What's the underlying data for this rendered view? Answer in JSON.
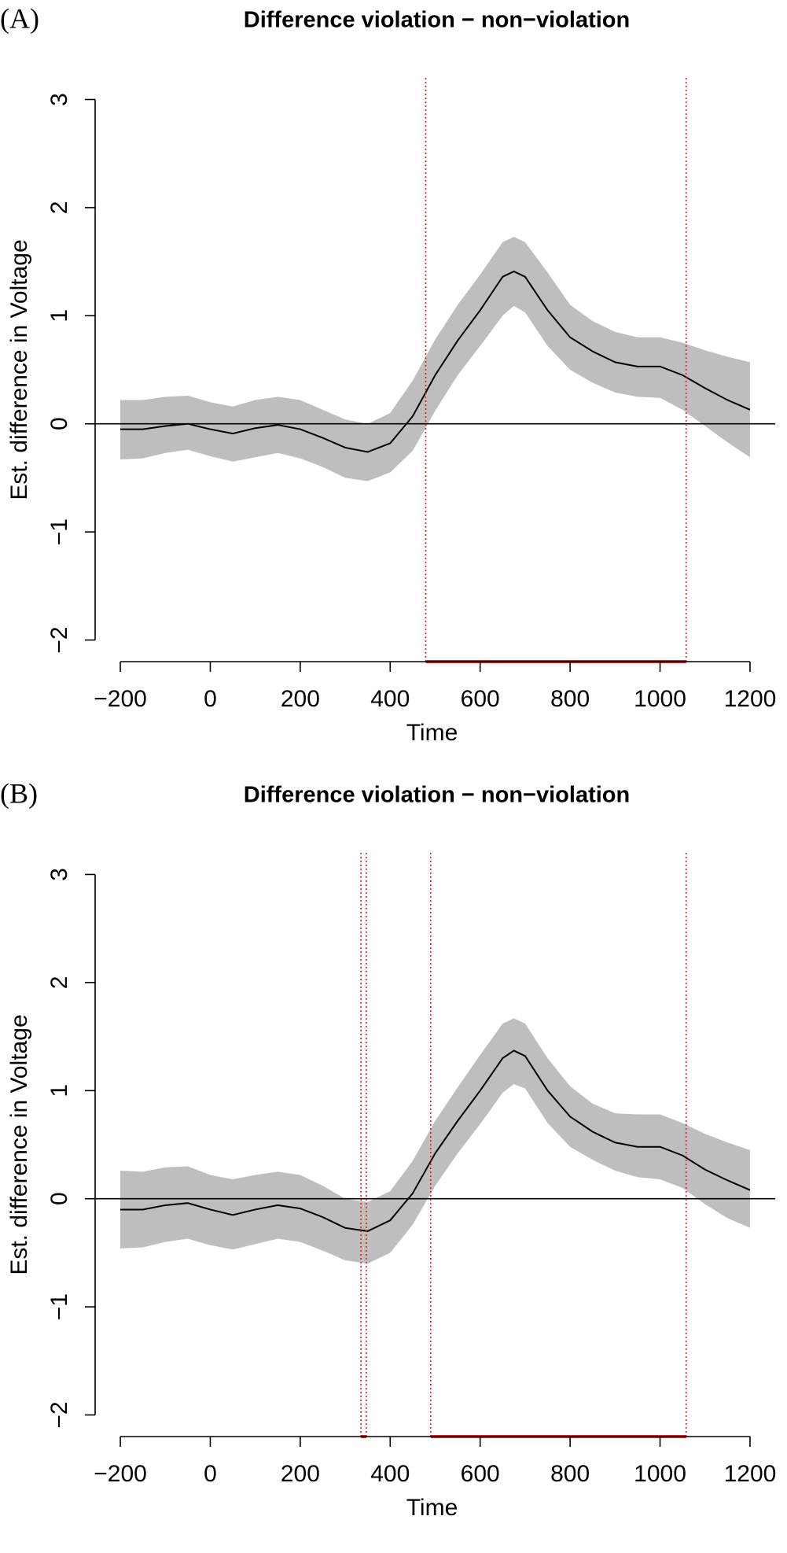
{
  "chart_data": [
    {
      "type": "line",
      "panel_label": "(A)",
      "title": "Difference violation − non−violation",
      "xlabel": "Time",
      "ylabel": "Est. difference in Voltage",
      "x": [
        -200,
        -150,
        -100,
        -50,
        0,
        50,
        100,
        150,
        200,
        250,
        300,
        350,
        400,
        450,
        500,
        550,
        600,
        650,
        675,
        700,
        750,
        800,
        850,
        900,
        950,
        1000,
        1050,
        1100,
        1150,
        1200
      ],
      "series": [
        {
          "color": "#000000",
          "values": [
            -0.05,
            -0.05,
            -0.02,
            0.0,
            -0.05,
            -0.09,
            -0.04,
            -0.01,
            -0.05,
            -0.13,
            -0.22,
            -0.26,
            -0.18,
            0.07,
            0.45,
            0.77,
            1.05,
            1.36,
            1.41,
            1.36,
            1.05,
            0.8,
            0.67,
            0.57,
            0.53,
            0.53,
            0.45,
            0.33,
            0.22,
            0.13
          ]
        }
      ],
      "band": {
        "color": "#bebebe",
        "upper": [
          0.22,
          0.22,
          0.25,
          0.26,
          0.2,
          0.16,
          0.22,
          0.25,
          0.22,
          0.13,
          0.04,
          0.0,
          0.1,
          0.4,
          0.78,
          1.1,
          1.38,
          1.68,
          1.73,
          1.68,
          1.4,
          1.1,
          0.95,
          0.85,
          0.8,
          0.8,
          0.75,
          0.68,
          0.62,
          0.57
        ],
        "lower": [
          -0.33,
          -0.32,
          -0.27,
          -0.24,
          -0.3,
          -0.35,
          -0.31,
          -0.27,
          -0.32,
          -0.4,
          -0.5,
          -0.53,
          -0.45,
          -0.25,
          0.12,
          0.45,
          0.72,
          1.0,
          1.09,
          1.03,
          0.72,
          0.5,
          0.38,
          0.29,
          0.25,
          0.24,
          0.13,
          -0.02,
          -0.17,
          -0.31
        ]
      },
      "hline": 0,
      "interval_color": "#e41a1c",
      "significant_intervals": [
        [
          479,
          1058
        ]
      ],
      "xlim": [
        -256,
        1256
      ],
      "ylim": [
        -2.2,
        3.2
      ],
      "xticks": [
        {
          "value": -200,
          "label": "−200"
        },
        0,
        200,
        400,
        600,
        800,
        1000,
        1200
      ],
      "yticks": [
        {
          "value": -2,
          "label": "−2"
        },
        {
          "value": -1,
          "label": "−1"
        },
        0,
        1,
        2,
        3
      ]
    },
    {
      "type": "line",
      "panel_label": "(B)",
      "title": "Difference violation − non−violation",
      "xlabel": "Time",
      "ylabel": "Est. difference in Voltage",
      "x": [
        -200,
        -150,
        -100,
        -50,
        0,
        50,
        100,
        150,
        200,
        250,
        300,
        350,
        400,
        450,
        500,
        550,
        600,
        650,
        675,
        700,
        750,
        800,
        850,
        900,
        950,
        1000,
        1050,
        1100,
        1150,
        1200
      ],
      "series": [
        {
          "color": "#000000",
          "values": [
            -0.1,
            -0.1,
            -0.06,
            -0.04,
            -0.1,
            -0.15,
            -0.1,
            -0.06,
            -0.09,
            -0.17,
            -0.27,
            -0.3,
            -0.2,
            0.05,
            0.42,
            0.72,
            1.0,
            1.3,
            1.37,
            1.32,
            1.0,
            0.76,
            0.62,
            0.52,
            0.48,
            0.48,
            0.4,
            0.27,
            0.17,
            0.08
          ]
        }
      ],
      "band": {
        "color": "#bebebe",
        "upper": [
          0.26,
          0.25,
          0.29,
          0.3,
          0.22,
          0.18,
          0.22,
          0.25,
          0.22,
          0.12,
          0.0,
          -0.03,
          0.07,
          0.35,
          0.72,
          1.03,
          1.33,
          1.62,
          1.67,
          1.62,
          1.3,
          1.04,
          0.88,
          0.79,
          0.78,
          0.78,
          0.7,
          0.6,
          0.52,
          0.45
        ],
        "lower": [
          -0.46,
          -0.45,
          -0.4,
          -0.37,
          -0.43,
          -0.47,
          -0.42,
          -0.37,
          -0.4,
          -0.48,
          -0.57,
          -0.6,
          -0.5,
          -0.24,
          0.12,
          0.42,
          0.69,
          0.98,
          1.06,
          1.02,
          0.7,
          0.48,
          0.36,
          0.26,
          0.2,
          0.18,
          0.1,
          -0.05,
          -0.18,
          -0.27
        ]
      },
      "hline": 0,
      "interval_color": "#e41a1c",
      "significant_intervals": [
        [
          335,
          347
        ],
        [
          490,
          1058
        ]
      ],
      "xlim": [
        -256,
        1256
      ],
      "ylim": [
        -2.2,
        3.2
      ],
      "xticks": [
        {
          "value": -200,
          "label": "−200"
        },
        0,
        200,
        400,
        600,
        800,
        1000,
        1200
      ],
      "yticks": [
        {
          "value": -2,
          "label": "−2"
        },
        {
          "value": -1,
          "label": "−1"
        },
        0,
        1,
        2,
        3
      ]
    }
  ]
}
